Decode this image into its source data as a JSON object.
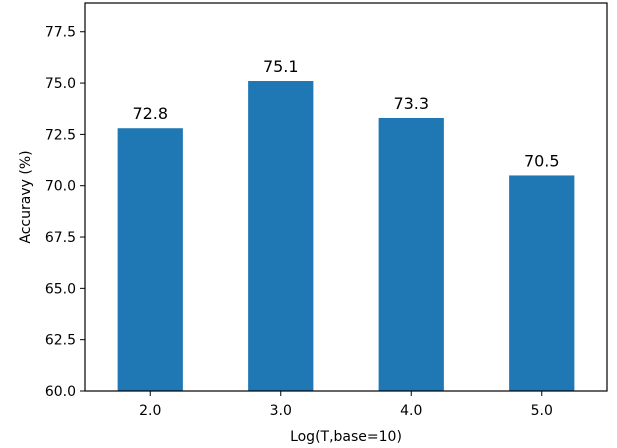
{
  "chart_data": {
    "type": "bar",
    "title": "",
    "xlabel": "Log(T,base=10)",
    "ylabel": "Accuravy (%)",
    "categories": [
      "2.0",
      "3.0",
      "4.0",
      "5.0"
    ],
    "values": [
      72.8,
      75.1,
      73.3,
      70.5
    ],
    "data_labels": [
      "72.8",
      "75.1",
      "73.3",
      "70.5"
    ],
    "ylim": [
      60.0,
      78.9
    ],
    "yticks": [
      "60.0",
      "62.5",
      "65.0",
      "67.5",
      "70.0",
      "72.5",
      "75.0",
      "77.5"
    ],
    "bar_color": "#1f77b4",
    "grid": false,
    "legend": "none"
  }
}
